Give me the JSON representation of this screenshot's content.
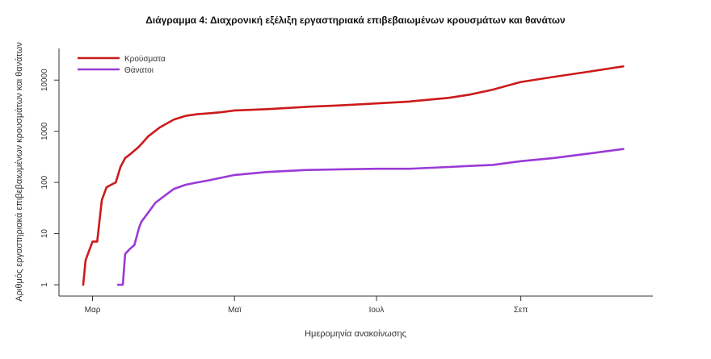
{
  "chart_data": {
    "type": "line",
    "title": "Διάγραμμα 4: Διαχρονική εξέλιξη εργαστηριακά επιβεβαιωμένων κρουσμάτων και θανάτων",
    "xlabel": "Ημερομηνία ανακοίνωσης",
    "ylabel": "Αριθμός εργαστηριακά επιβεβαιωμένων κρουσμάτων και θανάτων",
    "y_scale": "log",
    "ylim": [
      1,
      30000
    ],
    "xlim": [
      "2020-02-26",
      "2020-10-18"
    ],
    "y_ticks": [
      1,
      10,
      100,
      1000,
      10000
    ],
    "y_tick_labels": [
      "1",
      "10",
      "100",
      "1000",
      "10000"
    ],
    "x_ticks": [
      "2020-03-01",
      "2020-05-01",
      "2020-07-01",
      "2020-09-01"
    ],
    "x_tick_labels": [
      "Μαρ",
      "Μαϊ",
      "Ιουλ",
      "Σεπ"
    ],
    "legend_position": "top-left",
    "grid": false,
    "series": [
      {
        "name": "Κρούσματα",
        "color": "#cc1a1a",
        "x": [
          "2020-02-26",
          "2020-02-27",
          "2020-02-28",
          "2020-03-01",
          "2020-03-03",
          "2020-03-05",
          "2020-03-07",
          "2020-03-09",
          "2020-03-11",
          "2020-03-13",
          "2020-03-15",
          "2020-03-17",
          "2020-03-19",
          "2020-03-21",
          "2020-03-25",
          "2020-03-30",
          "2020-04-05",
          "2020-04-10",
          "2020-04-15",
          "2020-04-20",
          "2020-04-25",
          "2020-05-01",
          "2020-05-15",
          "2020-06-01",
          "2020-06-15",
          "2020-07-01",
          "2020-07-15",
          "2020-08-01",
          "2020-08-10",
          "2020-08-20",
          "2020-09-01",
          "2020-09-15",
          "2020-10-01",
          "2020-10-15"
        ],
        "y": [
          1,
          3,
          4,
          7,
          7,
          45,
          80,
          90,
          100,
          200,
          300,
          350,
          420,
          500,
          800,
          1200,
          1700,
          2000,
          2150,
          2250,
          2350,
          2550,
          2700,
          3000,
          3200,
          3500,
          3800,
          4500,
          5200,
          6500,
          9200,
          11500,
          14800,
          18500
        ]
      },
      {
        "name": "Θάνατοι",
        "color": "#9a3ad6",
        "x": [
          "2020-03-12",
          "2020-03-14",
          "2020-03-15",
          "2020-03-17",
          "2020-03-19",
          "2020-03-21",
          "2020-03-22",
          "2020-03-25",
          "2020-03-28",
          "2020-04-01",
          "2020-04-05",
          "2020-04-10",
          "2020-04-15",
          "2020-04-20",
          "2020-05-01",
          "2020-05-15",
          "2020-06-01",
          "2020-06-15",
          "2020-07-01",
          "2020-07-15",
          "2020-08-01",
          "2020-08-10",
          "2020-08-20",
          "2020-09-01",
          "2020-09-15",
          "2020-10-01",
          "2020-10-15"
        ],
        "y": [
          1,
          1,
          4,
          5,
          6,
          13,
          17,
          26,
          40,
          55,
          75,
          90,
          100,
          110,
          140,
          160,
          175,
          180,
          185,
          185,
          200,
          210,
          220,
          260,
          300,
          370,
          450
        ]
      }
    ]
  }
}
